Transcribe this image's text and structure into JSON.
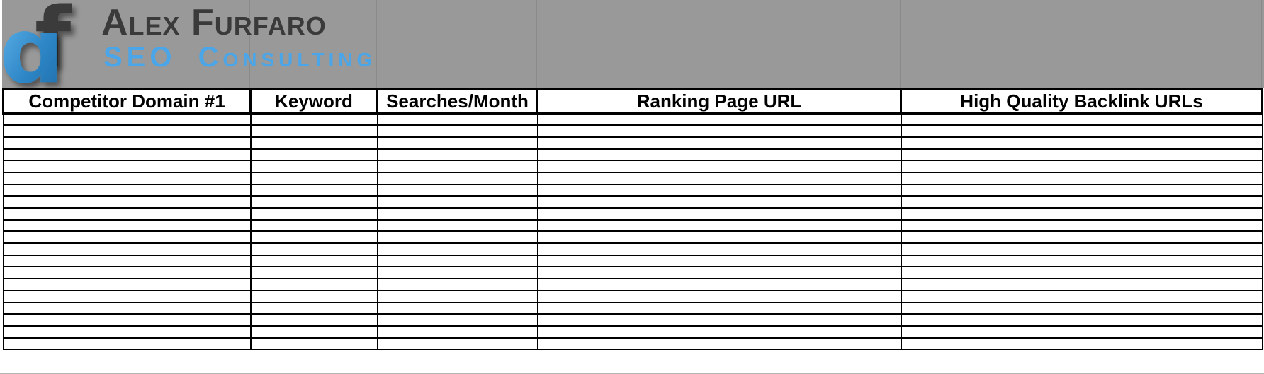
{
  "brand": {
    "logo_monogram": "af",
    "name": "Alex Furfaro",
    "tagline": "SEO Consulting"
  },
  "colors": {
    "banner_bg": "#999999",
    "banner_gridline": "#8a8a8a",
    "accent_blue": "#4aa6e8",
    "logo_dark": "#3a3a3a",
    "grid_border": "#000000",
    "cell_bg": "#ffffff"
  },
  "table": {
    "columns": [
      {
        "id": "competitor-domain-1",
        "label": "Competitor Domain #1"
      },
      {
        "id": "keyword",
        "label": "Keyword"
      },
      {
        "id": "searches-month",
        "label": "Searches/Month"
      },
      {
        "id": "ranking-page-url",
        "label": "Ranking Page URL"
      },
      {
        "id": "high-quality-backlink-urls",
        "label": "High Quality Backlink URLs"
      }
    ],
    "row_count": 20,
    "rows": [
      [
        "",
        "",
        "",
        "",
        ""
      ],
      [
        "",
        "",
        "",
        "",
        ""
      ],
      [
        "",
        "",
        "",
        "",
        ""
      ],
      [
        "",
        "",
        "",
        "",
        ""
      ],
      [
        "",
        "",
        "",
        "",
        ""
      ],
      [
        "",
        "",
        "",
        "",
        ""
      ],
      [
        "",
        "",
        "",
        "",
        ""
      ],
      [
        "",
        "",
        "",
        "",
        ""
      ],
      [
        "",
        "",
        "",
        "",
        ""
      ],
      [
        "",
        "",
        "",
        "",
        ""
      ],
      [
        "",
        "",
        "",
        "",
        ""
      ],
      [
        "",
        "",
        "",
        "",
        ""
      ],
      [
        "",
        "",
        "",
        "",
        ""
      ],
      [
        "",
        "",
        "",
        "",
        ""
      ],
      [
        "",
        "",
        "",
        "",
        ""
      ],
      [
        "",
        "",
        "",
        "",
        ""
      ],
      [
        "",
        "",
        "",
        "",
        ""
      ],
      [
        "",
        "",
        "",
        "",
        ""
      ],
      [
        "",
        "",
        "",
        "",
        ""
      ],
      [
        "",
        "",
        "",
        "",
        ""
      ]
    ]
  }
}
